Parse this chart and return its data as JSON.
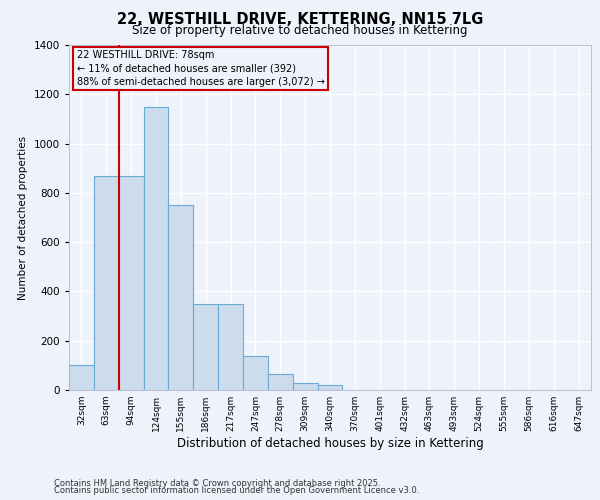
{
  "title_line1": "22, WESTHILL DRIVE, KETTERING, NN15 7LG",
  "title_line2": "Size of property relative to detached houses in Kettering",
  "xlabel": "Distribution of detached houses by size in Kettering",
  "ylabel": "Number of detached properties",
  "categories": [
    "32sqm",
    "63sqm",
    "94sqm",
    "124sqm",
    "155sqm",
    "186sqm",
    "217sqm",
    "247sqm",
    "278sqm",
    "309sqm",
    "340sqm",
    "370sqm",
    "401sqm",
    "432sqm",
    "463sqm",
    "493sqm",
    "524sqm",
    "555sqm",
    "586sqm",
    "616sqm",
    "647sqm"
  ],
  "values": [
    100,
    870,
    870,
    1150,
    750,
    350,
    350,
    140,
    65,
    30,
    20,
    0,
    0,
    0,
    0,
    0,
    0,
    0,
    0,
    0,
    0
  ],
  "bar_color": "#ccdcec",
  "bar_edge_color": "#6aaad4",
  "ylim": [
    0,
    1400
  ],
  "yticks": [
    0,
    200,
    400,
    600,
    800,
    1000,
    1200,
    1400
  ],
  "annotation_title": "22 WESTHILL DRIVE: 78sqm",
  "annotation_line2": "← 11% of detached houses are smaller (392)",
  "annotation_line3": "88% of semi-detached houses are larger (3,072) →",
  "annotation_box_color": "#cc0000",
  "vline_x": 1.5,
  "vline_color": "#cc0000",
  "background_color": "#eef2fa",
  "grid_color": "#ffffff",
  "footer_line1": "Contains HM Land Registry data © Crown copyright and database right 2025.",
  "footer_line2": "Contains public sector information licensed under the Open Government Licence v3.0."
}
